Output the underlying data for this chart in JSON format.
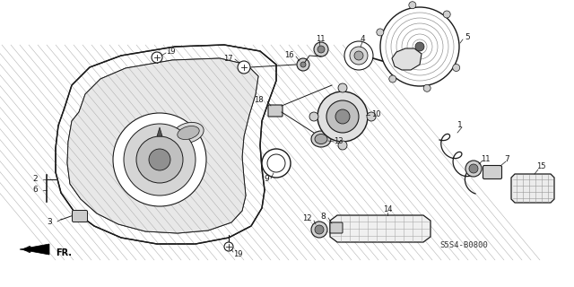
{
  "bg_color": "#ffffff",
  "line_color": "#1a1a1a",
  "diagram_code": "S5S4-B0800",
  "fig_width": 6.4,
  "fig_height": 3.2,
  "dpi": 100
}
